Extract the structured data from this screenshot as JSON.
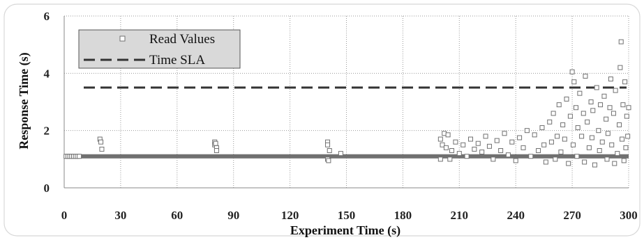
{
  "chart_data": {
    "type": "scatter",
    "xlabel": "Experiment Time (s)",
    "ylabel": "Response Time (s)",
    "xlim": [
      0,
      300
    ],
    "ylim": [
      0,
      6
    ],
    "x_ticks": [
      0,
      30,
      60,
      90,
      120,
      150,
      180,
      210,
      240,
      270,
      300
    ],
    "y_ticks": [
      0,
      2,
      4,
      6
    ],
    "grid": "dotted",
    "legend_position": "top-left",
    "series": [
      {
        "name": "Read Values",
        "kind": "scatter",
        "marker": "hollow-square",
        "color": "#707070",
        "baseline_value": 1.1,
        "points": [
          [
            1,
            1.1
          ],
          [
            2,
            1.1
          ],
          [
            3,
            1.1
          ],
          [
            4,
            1.1
          ],
          [
            5,
            1.1
          ],
          [
            6,
            1.1
          ],
          [
            7,
            1.1
          ],
          [
            8,
            1.1
          ],
          [
            19,
            1.7
          ],
          [
            19.5,
            1.6
          ],
          [
            20,
            1.35
          ],
          [
            80,
            1.6
          ],
          [
            80,
            1.5
          ],
          [
            80.5,
            1.55
          ],
          [
            81,
            1.4
          ],
          [
            81,
            1.3
          ],
          [
            140,
            1.6
          ],
          [
            140,
            1.5
          ],
          [
            140,
            1.0
          ],
          [
            140.5,
            0.95
          ],
          [
            141,
            1.3
          ],
          [
            147,
            1.2
          ],
          [
            200,
            1.7
          ],
          [
            200,
            1.0
          ],
          [
            201,
            1.5
          ],
          [
            202,
            1.9
          ],
          [
            203,
            1.4
          ],
          [
            204,
            1.85
          ],
          [
            205,
            1.0
          ],
          [
            206,
            1.3
          ],
          [
            208,
            1.6
          ],
          [
            210,
            1.2
          ],
          [
            212,
            1.5
          ],
          [
            214,
            1.1
          ],
          [
            216,
            1.7
          ],
          [
            218,
            1.35
          ],
          [
            220,
            1.55
          ],
          [
            222,
            1.25
          ],
          [
            224,
            1.8
          ],
          [
            226,
            1.45
          ],
          [
            228,
            1.0
          ],
          [
            230,
            1.65
          ],
          [
            232,
            1.3
          ],
          [
            234,
            1.9
          ],
          [
            236,
            1.15
          ],
          [
            238,
            1.6
          ],
          [
            240,
            0.95
          ],
          [
            242,
            1.75
          ],
          [
            244,
            1.4
          ],
          [
            246,
            2.0
          ],
          [
            248,
            1.1
          ],
          [
            250,
            1.85
          ],
          [
            252,
            1.3
          ],
          [
            254,
            2.1
          ],
          [
            255,
            1.5
          ],
          [
            256,
            0.9
          ],
          [
            258,
            2.3
          ],
          [
            259,
            1.6
          ],
          [
            260,
            2.6
          ],
          [
            261,
            1.0
          ],
          [
            262,
            1.8
          ],
          [
            263,
            2.9
          ],
          [
            264,
            1.25
          ],
          [
            265,
            2.2
          ],
          [
            266,
            1.7
          ],
          [
            267,
            3.1
          ],
          [
            268,
            0.85
          ],
          [
            269,
            2.5
          ],
          [
            270,
            4.05
          ],
          [
            270.5,
            1.5
          ],
          [
            271,
            3.7
          ],
          [
            272,
            2.8
          ],
          [
            272.5,
            1.1
          ],
          [
            273,
            2.1
          ],
          [
            274,
            3.3
          ],
          [
            275,
            1.8
          ],
          [
            276,
            2.6
          ],
          [
            276.5,
            0.9
          ],
          [
            277,
            3.9
          ],
          [
            278,
            2.3
          ],
          [
            279,
            1.4
          ],
          [
            280,
            3.0
          ],
          [
            280.5,
            1.75
          ],
          [
            281,
            2.7
          ],
          [
            282,
            0.8
          ],
          [
            283,
            3.5
          ],
          [
            284,
            2.0
          ],
          [
            284.5,
            1.3
          ],
          [
            285,
            2.9
          ],
          [
            286,
            1.6
          ],
          [
            287,
            3.2
          ],
          [
            288,
            2.4
          ],
          [
            288.5,
            1.0
          ],
          [
            289,
            1.9
          ],
          [
            290,
            2.8
          ],
          [
            290.5,
            3.8
          ],
          [
            291,
            1.5
          ],
          [
            292,
            2.6
          ],
          [
            292.5,
            0.85
          ],
          [
            293,
            3.4
          ],
          [
            294,
            1.2
          ],
          [
            295,
            2.2
          ],
          [
            295.5,
            4.2
          ],
          [
            296,
            5.1
          ],
          [
            296.5,
            1.7
          ],
          [
            297,
            2.9
          ],
          [
            297.5,
            0.95
          ],
          [
            298,
            3.7
          ],
          [
            298.5,
            1.4
          ],
          [
            299,
            2.5
          ],
          [
            299.5,
            1.8
          ],
          [
            300,
            2.8
          ]
        ]
      },
      {
        "name": "Time SLA",
        "kind": "line",
        "style": "dashed",
        "color": "#333333",
        "value": 3.5
      }
    ]
  }
}
